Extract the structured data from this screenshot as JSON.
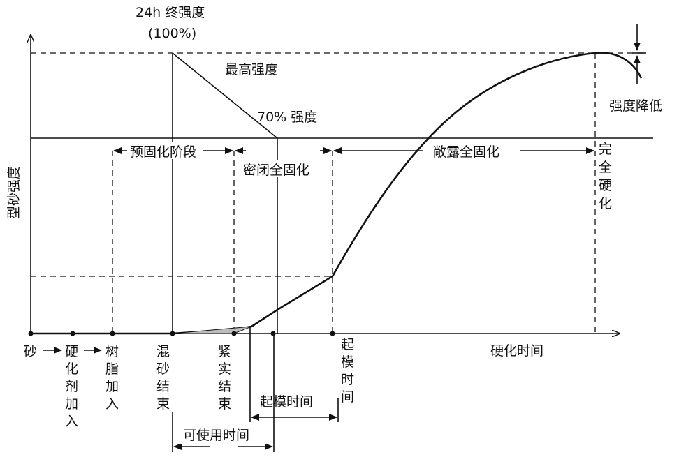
{
  "title": {
    "line1": "24h 终强度",
    "line2": "(100%)"
  },
  "labels": {
    "max_strength": "最高强度",
    "strength_70": "70% 强度",
    "strength_drop": "强度降低",
    "y_axis": "型砂强度",
    "x_axis": "硬化时间",
    "full_hardening": [
      "完",
      "全",
      "硬",
      "化"
    ]
  },
  "phases": {
    "pre_cure": "预固化阶段",
    "sealed_full_cure": "密闭全固化",
    "exposed_full_cure": "敞露全固化"
  },
  "events": {
    "sand": [
      "砂"
    ],
    "hardener_added": [
      "硬",
      "化",
      "剂",
      "加",
      "入"
    ],
    "resin_added": [
      "树",
      "脂",
      "加",
      "入"
    ],
    "mixing_end": [
      "混",
      "砂",
      "结",
      "束"
    ],
    "compaction_end": [
      "紧",
      "实",
      "结",
      "束"
    ],
    "stripping_time": [
      "起",
      "模",
      "时",
      "间"
    ]
  },
  "intervals": {
    "stripping_time": "起模时间",
    "usable_time": "可使用时间"
  },
  "colors": {
    "ink": "#111111",
    "background": "#ffffff"
  }
}
